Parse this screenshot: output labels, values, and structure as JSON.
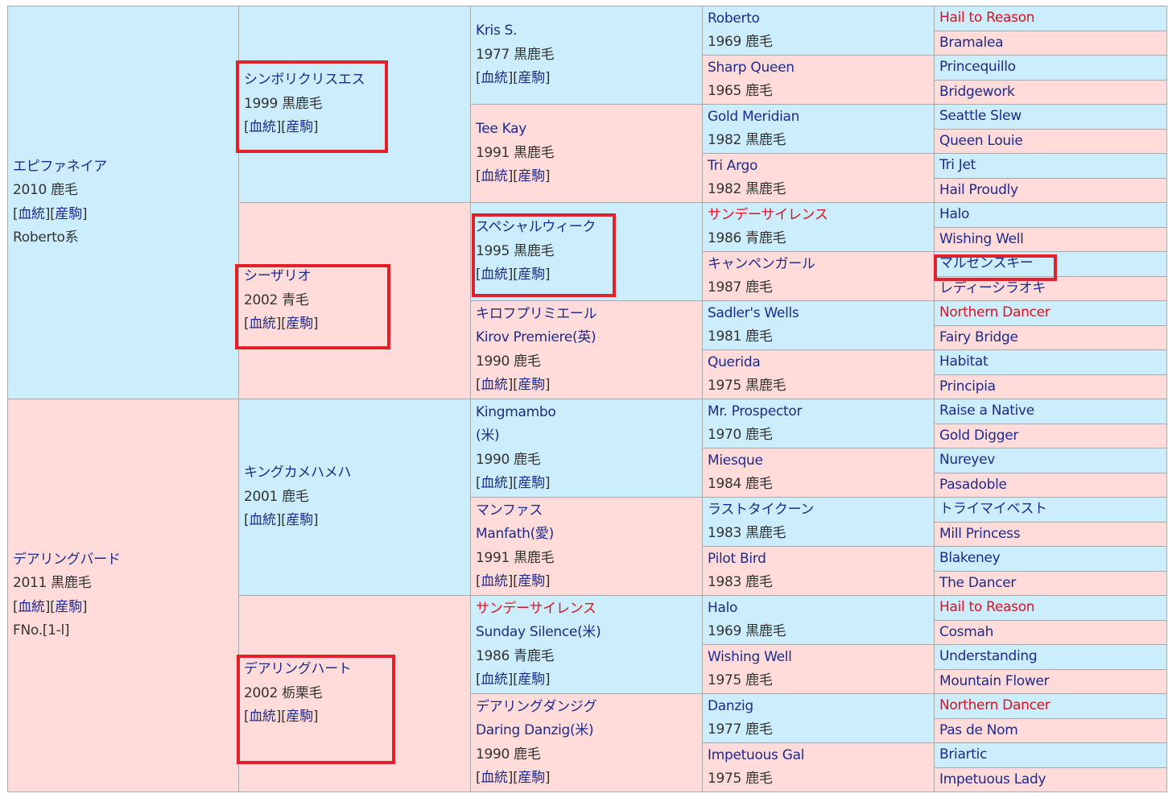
{
  "colors": {
    "sire_bg": "#cceefc",
    "dam_bg": "#ffdcd9",
    "link": "#1e2a8c",
    "highlight_name": "#dd1020",
    "highlight_box": "#e0202a"
  },
  "link_labels": {
    "pedigree": "血統",
    "offspring": "産駒"
  },
  "gen1": [
    {
      "name": "エピファネイア",
      "detail": "2010 鹿毛",
      "links": true,
      "extra": "Roberto系"
    },
    {
      "name": "デアリングバード",
      "detail": "2011 黒鹿毛",
      "links": true,
      "extra": "FNo.[1-l]"
    }
  ],
  "gen2": [
    {
      "name": "シンボリクリスエス",
      "detail": "1999 黒鹿毛",
      "links": true,
      "boxed": true
    },
    {
      "name": "シーザリオ",
      "detail": "2002 青毛",
      "links": true,
      "boxed": true
    },
    {
      "name": "キングカメハメハ",
      "detail": "2001 鹿毛",
      "links": true
    },
    {
      "name": "デアリングハート",
      "detail": "2002 栃栗毛",
      "links": true,
      "boxed": true
    }
  ],
  "gen3": [
    {
      "name": "Kris S.",
      "detail": "1977 黒鹿毛",
      "links": true
    },
    {
      "name": "Tee Kay",
      "detail": "1991 黒鹿毛",
      "links": true
    },
    {
      "name": "スペシャルウィーク",
      "detail": "1995 黒鹿毛",
      "links": true,
      "boxed": true
    },
    {
      "name": "キロフプリミエール",
      "en": "Kirov Premiere(英)",
      "detail": "1990 鹿毛",
      "links": true
    },
    {
      "name": "Kingmambo",
      "en": "(米)",
      "detail": "1990 鹿毛",
      "links": true
    },
    {
      "name": "マンファス",
      "en": "Manfath(愛)",
      "detail": "1991 黒鹿毛",
      "links": true
    },
    {
      "name": "サンデーサイレンス",
      "en": "Sunday Silence(米)",
      "detail": "1986 青鹿毛",
      "links": true,
      "red": true
    },
    {
      "name": "デアリングダンジグ",
      "en": "Daring Danzig(米)",
      "detail": "1990 鹿毛",
      "links": true
    }
  ],
  "gen4": [
    {
      "name": "Roberto",
      "detail": "1969 鹿毛"
    },
    {
      "name": "Sharp Queen",
      "detail": "1965 鹿毛"
    },
    {
      "name": "Gold Meridian",
      "detail": "1982 黒鹿毛"
    },
    {
      "name": "Tri Argo",
      "detail": "1982 黒鹿毛"
    },
    {
      "name": "サンデーサイレンス",
      "detail": "1986 青鹿毛",
      "red": true
    },
    {
      "name": "キャンペンガール",
      "detail": "1987 鹿毛"
    },
    {
      "name": "Sadler's Wells",
      "detail": "1981 鹿毛"
    },
    {
      "name": "Querida",
      "detail": "1975 黒鹿毛"
    },
    {
      "name": "Mr. Prospector",
      "detail": "1970 鹿毛"
    },
    {
      "name": "Miesque",
      "detail": "1984 鹿毛"
    },
    {
      "name": "ラストタイクーン",
      "detail": "1983 黒鹿毛"
    },
    {
      "name": "Pilot Bird",
      "detail": "1983 鹿毛"
    },
    {
      "name": "Halo",
      "detail": "1969 黒鹿毛"
    },
    {
      "name": "Wishing Well",
      "detail": "1975 鹿毛"
    },
    {
      "name": "Danzig",
      "detail": "1977 鹿毛"
    },
    {
      "name": "Impetuous Gal",
      "detail": "1975 鹿毛"
    }
  ],
  "gen5": [
    {
      "name": "Hail to Reason",
      "red": true
    },
    {
      "name": "Bramalea"
    },
    {
      "name": "Princequillo"
    },
    {
      "name": "Bridgework"
    },
    {
      "name": "Seattle Slew"
    },
    {
      "name": "Queen Louie"
    },
    {
      "name": "Tri Jet"
    },
    {
      "name": "Hail Proudly"
    },
    {
      "name": "Halo"
    },
    {
      "name": "Wishing Well"
    },
    {
      "name": "マルゼンスキー",
      "boxed": true
    },
    {
      "name": "レディーシラオキ"
    },
    {
      "name": "Northern Dancer",
      "red": true
    },
    {
      "name": "Fairy Bridge"
    },
    {
      "name": "Habitat"
    },
    {
      "name": "Principia"
    },
    {
      "name": "Raise a Native"
    },
    {
      "name": "Gold Digger"
    },
    {
      "name": "Nureyev"
    },
    {
      "name": "Pasadoble"
    },
    {
      "name": "トライマイベスト"
    },
    {
      "name": "Mill Princess"
    },
    {
      "name": "Blakeney"
    },
    {
      "name": "The Dancer"
    },
    {
      "name": "Hail to Reason",
      "red": true
    },
    {
      "name": "Cosmah"
    },
    {
      "name": "Understanding"
    },
    {
      "name": "Mountain Flower"
    },
    {
      "name": "Northern Dancer",
      "red": true
    },
    {
      "name": "Pas de Nom"
    },
    {
      "name": "Briartic"
    },
    {
      "name": "Impetuous Lady"
    }
  ]
}
